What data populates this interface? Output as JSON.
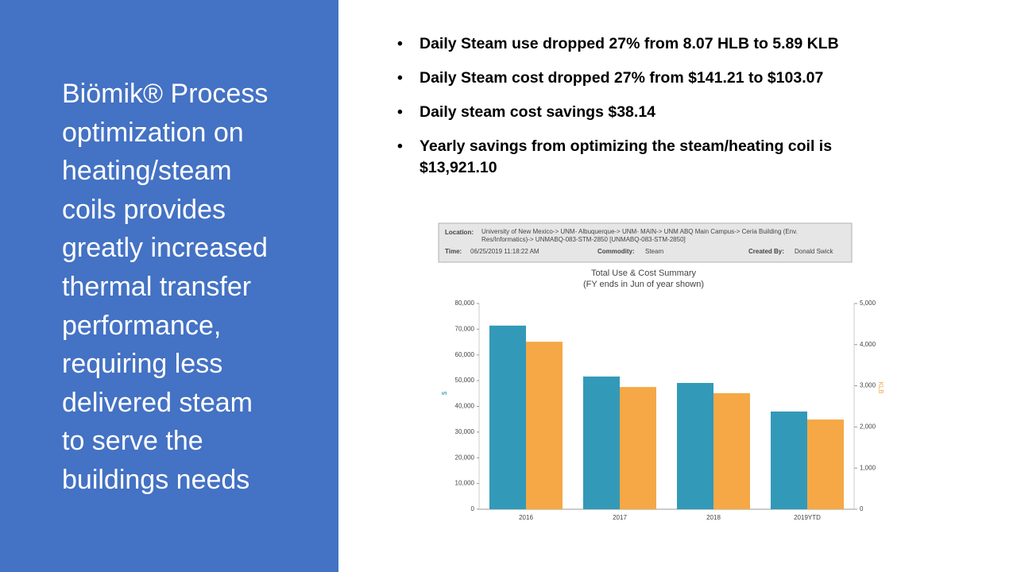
{
  "slide": {
    "heading_lines": [
      "Biömik® Process",
      "optimization on",
      "heating/steam",
      "coils provides",
      "greatly increased",
      "thermal transfer",
      "performance,",
      "requiring less",
      "delivered steam",
      "to serve the",
      "buildings needs"
    ],
    "bullets": [
      "Daily Steam use dropped 27% from 8.07 HLB to 5.89 KLB",
      "Daily Steam cost dropped 27% from $141.21 to $103.07",
      "Daily steam cost savings $38.14",
      "Yearly savings from optimizing the steam/heating coil is $13,921.10"
    ]
  },
  "chart_data": {
    "type": "bar",
    "header": {
      "location_label": "Location:",
      "location": "University of New Mexico-> UNM- Albuquerque-> UNM- MAIN-> UNM ABQ Main Campus-> Ceria Building (Env. Res/Informatics)-> UNMABQ-083-STM-2850 [UNMABQ-083-STM-2850]",
      "time_label": "Time:",
      "time": "06/25/2019 11:18:22 AM",
      "commodity_label": "Commodity:",
      "commodity": "Steam",
      "created_label": "Created By:",
      "created": "Donald Swick"
    },
    "title": "Total Use & Cost Summary",
    "subtitle": "(FY ends in Jun of year shown)",
    "ylabel": "$",
    "y2label": "KLB",
    "categories": [
      "2016",
      "2017",
      "2018",
      "2019YTD"
    ],
    "series": [
      {
        "name": "$",
        "color": "#3399b8",
        "values": [
          71400,
          51600,
          49100,
          38000
        ]
      },
      {
        "name": "KLB",
        "color": "#f5a845",
        "axis": "y2",
        "values": [
          4070,
          2970,
          2820,
          2180
        ]
      }
    ],
    "ylim": [
      0,
      80000
    ],
    "yticks": [
      0,
      {
        "value": 10000,
        "label": "10,000"
      },
      {
        "value": 20000,
        "label": "20,000"
      },
      {
        "value": 30000,
        "label": "30,000"
      },
      {
        "value": 40000,
        "label": "40,000"
      },
      {
        "value": 50000,
        "label": "50,000"
      },
      {
        "value": 60000,
        "label": "60,000"
      },
      {
        "value": 70000,
        "label": "70,000"
      },
      {
        "value": 80000,
        "label": "80,000"
      }
    ],
    "y2lim": [
      0,
      5000
    ],
    "y2ticks": [
      0,
      {
        "value": 1000,
        "label": "1,000"
      },
      {
        "value": 2000,
        "label": "2,000"
      },
      {
        "value": 3000,
        "label": "3,000"
      },
      {
        "value": 4000,
        "label": "4,000"
      },
      {
        "value": 5000,
        "label": "5,000"
      }
    ]
  }
}
